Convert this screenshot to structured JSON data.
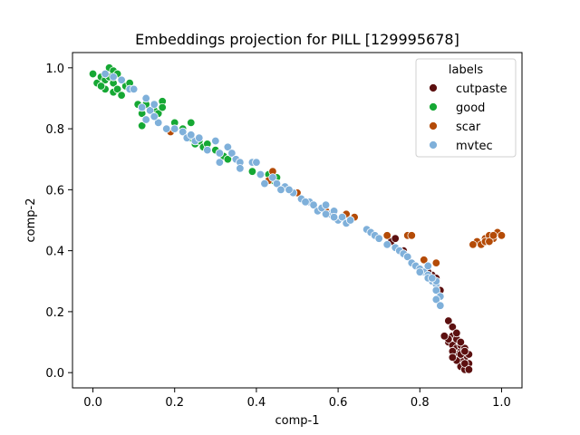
{
  "chart_data": {
    "type": "scatter",
    "title": "Embeddings projection for PILL [129995678]",
    "xlabel": "comp-1",
    "ylabel": "comp-2",
    "xlim": [
      -0.05,
      1.05
    ],
    "ylim": [
      -0.05,
      1.05
    ],
    "xticks": [
      0.0,
      0.2,
      0.4,
      0.6,
      0.8,
      1.0
    ],
    "yticks": [
      0.0,
      0.2,
      0.4,
      0.6,
      0.8,
      1.0
    ],
    "tick_labels_x": [
      "0.0",
      "0.2",
      "0.4",
      "0.6",
      "0.8",
      "1.0"
    ],
    "tick_labels_y": [
      "0.0",
      "0.2",
      "0.4",
      "0.6",
      "0.8",
      "1.0"
    ],
    "grid": false,
    "legend": {
      "title": "labels",
      "placement": "top-right"
    },
    "series": [
      {
        "name": "cutpaste",
        "color": "#5c1010",
        "points": [
          [
            0.87,
            0.17
          ],
          [
            0.88,
            0.15
          ],
          [
            0.88,
            0.12
          ],
          [
            0.87,
            0.1
          ],
          [
            0.88,
            0.09
          ],
          [
            0.89,
            0.11
          ],
          [
            0.89,
            0.08
          ],
          [
            0.9,
            0.07
          ],
          [
            0.9,
            0.09
          ],
          [
            0.91,
            0.05
          ],
          [
            0.9,
            0.04
          ],
          [
            0.89,
            0.06
          ],
          [
            0.91,
            0.08
          ],
          [
            0.92,
            0.06
          ],
          [
            0.9,
            0.02
          ],
          [
            0.91,
            0.01
          ],
          [
            0.92,
            0.03
          ],
          [
            0.89,
            0.13
          ],
          [
            0.88,
            0.07
          ],
          [
            0.87,
            0.11
          ],
          [
            0.9,
            0.1
          ],
          [
            0.91,
            0.03
          ],
          [
            0.92,
            0.01
          ],
          [
            0.86,
            0.12
          ],
          [
            0.89,
            0.04
          ],
          [
            0.88,
            0.05
          ],
          [
            0.9,
            0.06
          ],
          [
            0.91,
            0.07
          ],
          [
            0.73,
            0.43
          ],
          [
            0.74,
            0.44
          ],
          [
            0.8,
            0.34
          ],
          [
            0.83,
            0.32
          ],
          [
            0.82,
            0.33
          ],
          [
            0.76,
            0.4
          ],
          [
            0.55,
            0.53
          ],
          [
            0.58,
            0.52
          ],
          [
            0.84,
            0.31
          ],
          [
            0.85,
            0.27
          ]
        ]
      },
      {
        "name": "good",
        "color": "#16a834",
        "points": [
          [
            0.0,
            0.98
          ],
          [
            0.01,
            0.95
          ],
          [
            0.02,
            0.97
          ],
          [
            0.03,
            0.96
          ],
          [
            0.04,
            1.0
          ],
          [
            0.05,
            0.99
          ],
          [
            0.04,
            0.97
          ],
          [
            0.05,
            0.95
          ],
          [
            0.06,
            0.98
          ],
          [
            0.05,
            0.92
          ],
          [
            0.06,
            0.93
          ],
          [
            0.07,
            0.96
          ],
          [
            0.08,
            0.94
          ],
          [
            0.07,
            0.91
          ],
          [
            0.09,
            0.93
          ],
          [
            0.1,
            0.93
          ],
          [
            0.11,
            0.88
          ],
          [
            0.12,
            0.85
          ],
          [
            0.13,
            0.83
          ],
          [
            0.12,
            0.81
          ],
          [
            0.13,
            0.88
          ],
          [
            0.15,
            0.86
          ],
          [
            0.16,
            0.85
          ],
          [
            0.17,
            0.89
          ],
          [
            0.17,
            0.87
          ],
          [
            0.16,
            0.82
          ],
          [
            0.2,
            0.82
          ],
          [
            0.22,
            0.8
          ],
          [
            0.24,
            0.82
          ],
          [
            0.24,
            0.77
          ],
          [
            0.25,
            0.75
          ],
          [
            0.26,
            0.76
          ],
          [
            0.27,
            0.74
          ],
          [
            0.28,
            0.75
          ],
          [
            0.3,
            0.73
          ],
          [
            0.32,
            0.71
          ],
          [
            0.33,
            0.7
          ],
          [
            0.36,
            0.69
          ],
          [
            0.39,
            0.66
          ],
          [
            0.43,
            0.65
          ],
          [
            0.44,
            0.63
          ],
          [
            0.45,
            0.64
          ],
          [
            0.03,
            0.93
          ],
          [
            0.02,
            0.94
          ],
          [
            0.09,
            0.95
          ]
        ]
      },
      {
        "name": "scar",
        "color": "#b44b07",
        "points": [
          [
            0.94,
            0.43
          ],
          [
            0.95,
            0.42
          ],
          [
            0.96,
            0.44
          ],
          [
            0.97,
            0.45
          ],
          [
            0.96,
            0.43
          ],
          [
            0.98,
            0.44
          ],
          [
            0.99,
            0.46
          ],
          [
            0.97,
            0.43
          ],
          [
            1.0,
            0.45
          ],
          [
            0.98,
            0.45
          ],
          [
            0.93,
            0.42
          ],
          [
            0.77,
            0.45
          ],
          [
            0.78,
            0.45
          ],
          [
            0.84,
            0.36
          ],
          [
            0.81,
            0.37
          ],
          [
            0.72,
            0.45
          ],
          [
            0.64,
            0.51
          ],
          [
            0.5,
            0.59
          ],
          [
            0.44,
            0.66
          ],
          [
            0.43,
            0.63
          ],
          [
            0.19,
            0.79
          ],
          [
            0.57,
            0.53
          ],
          [
            0.62,
            0.52
          ]
        ]
      },
      {
        "name": "mvtec",
        "color": "#7fb0da",
        "points": [
          [
            0.03,
            0.98
          ],
          [
            0.05,
            0.97
          ],
          [
            0.07,
            0.96
          ],
          [
            0.09,
            0.93
          ],
          [
            0.12,
            0.87
          ],
          [
            0.13,
            0.9
          ],
          [
            0.14,
            0.86
          ],
          [
            0.15,
            0.88
          ],
          [
            0.13,
            0.83
          ],
          [
            0.16,
            0.82
          ],
          [
            0.2,
            0.8
          ],
          [
            0.22,
            0.79
          ],
          [
            0.23,
            0.77
          ],
          [
            0.25,
            0.76
          ],
          [
            0.26,
            0.77
          ],
          [
            0.28,
            0.73
          ],
          [
            0.3,
            0.76
          ],
          [
            0.31,
            0.72
          ],
          [
            0.31,
            0.69
          ],
          [
            0.33,
            0.74
          ],
          [
            0.34,
            0.72
          ],
          [
            0.35,
            0.7
          ],
          [
            0.36,
            0.69
          ],
          [
            0.36,
            0.67
          ],
          [
            0.39,
            0.69
          ],
          [
            0.4,
            0.69
          ],
          [
            0.41,
            0.65
          ],
          [
            0.42,
            0.62
          ],
          [
            0.44,
            0.64
          ],
          [
            0.45,
            0.62
          ],
          [
            0.47,
            0.61
          ],
          [
            0.46,
            0.6
          ],
          [
            0.49,
            0.59
          ],
          [
            0.51,
            0.57
          ],
          [
            0.53,
            0.56
          ],
          [
            0.54,
            0.55
          ],
          [
            0.55,
            0.53
          ],
          [
            0.56,
            0.54
          ],
          [
            0.57,
            0.55
          ],
          [
            0.58,
            0.52
          ],
          [
            0.59,
            0.53
          ],
          [
            0.6,
            0.5
          ],
          [
            0.61,
            0.51
          ],
          [
            0.62,
            0.49
          ],
          [
            0.63,
            0.5
          ],
          [
            0.67,
            0.47
          ],
          [
            0.68,
            0.46
          ],
          [
            0.69,
            0.45
          ],
          [
            0.7,
            0.44
          ],
          [
            0.72,
            0.42
          ],
          [
            0.74,
            0.41
          ],
          [
            0.75,
            0.4
          ],
          [
            0.76,
            0.39
          ],
          [
            0.77,
            0.38
          ],
          [
            0.78,
            0.36
          ],
          [
            0.79,
            0.35
          ],
          [
            0.8,
            0.34
          ],
          [
            0.81,
            0.33
          ],
          [
            0.82,
            0.32
          ],
          [
            0.83,
            0.3
          ],
          [
            0.82,
            0.31
          ],
          [
            0.84,
            0.29
          ],
          [
            0.84,
            0.27
          ],
          [
            0.85,
            0.25
          ],
          [
            0.84,
            0.24
          ],
          [
            0.85,
            0.22
          ],
          [
            0.84,
            0.3
          ],
          [
            0.83,
            0.31
          ],
          [
            0.82,
            0.35
          ],
          [
            0.8,
            0.33
          ],
          [
            0.59,
            0.51
          ],
          [
            0.57,
            0.52
          ],
          [
            0.52,
            0.56
          ],
          [
            0.48,
            0.6
          ],
          [
            0.24,
            0.78
          ],
          [
            0.18,
            0.8
          ],
          [
            0.1,
            0.93
          ],
          [
            0.15,
            0.84
          ]
        ]
      }
    ]
  }
}
